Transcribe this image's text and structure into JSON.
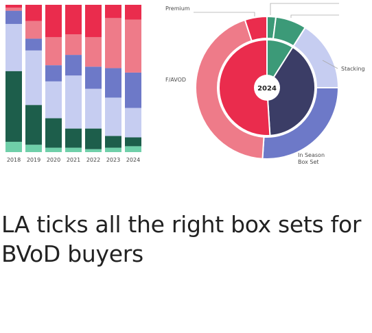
{
  "article": {
    "headline": "LA ticks all the right box sets for BVoD buyers"
  },
  "colors": {
    "dark_green": "#1d5e4b",
    "mint": "#6fcfa9",
    "lavender": "#c6cdf1",
    "periwinkle": "#6d79c8",
    "salmon": "#ee7b89",
    "red": "#ea2c4d",
    "navy": "#3b3d66",
    "teal": "#3c9a78"
  },
  "chart_data": [
    {
      "type": "bar",
      "stacked": true,
      "categories": [
        "2018",
        "2019",
        "2020",
        "2021",
        "2022",
        "2023",
        "2024"
      ],
      "series": [
        {
          "color": "#6fcfa9",
          "values": [
            7,
            5,
            3,
            3,
            2,
            3,
            4
          ]
        },
        {
          "color": "#1d5e4b",
          "values": [
            48,
            27,
            20,
            13,
            14,
            8,
            6
          ]
        },
        {
          "color": "#c6cdf1",
          "values": [
            32,
            37,
            25,
            36,
            27,
            26,
            20
          ]
        },
        {
          "color": "#6d79c8",
          "values": [
            9,
            8,
            11,
            14,
            15,
            20,
            24
          ]
        },
        {
          "color": "#ee7b89",
          "values": [
            2,
            12,
            19,
            14,
            20,
            34,
            36
          ]
        },
        {
          "color": "#ea2c4d",
          "values": [
            2,
            11,
            22,
            20,
            22,
            9,
            10
          ]
        }
      ],
      "ylim": [
        0,
        100
      ]
    },
    {
      "type": "pie",
      "center_label": "2024",
      "outer_ring": [
        {
          "color": "#3c9a78",
          "value": 2
        },
        {
          "color": "#3c9a78",
          "value": 7
        },
        {
          "color": "#c6cdf1",
          "value": 16
        },
        {
          "color": "#6d79c8",
          "value": 26
        },
        {
          "color": "#ee7b89",
          "value": 44
        },
        {
          "color": "#ea2c4d",
          "value": 5
        }
      ],
      "inner_ring": [
        {
          "color": "#3c9a78",
          "value": 9
        },
        {
          "color": "#3b3d66",
          "value": 40
        },
        {
          "color": "#ea2c4d",
          "value": 51
        }
      ],
      "annotations": [
        "Premium",
        "Stacking",
        "F/AVOD",
        "In Season\nBox Set"
      ]
    }
  ]
}
